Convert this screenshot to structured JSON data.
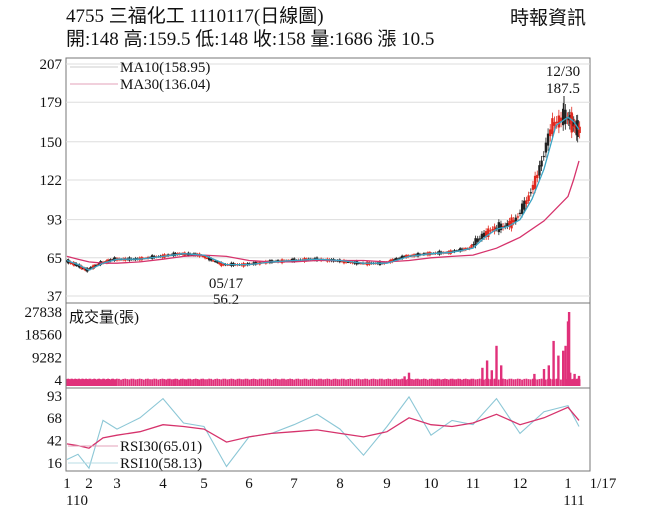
{
  "header": {
    "title": "4755  三福化工 1110117(日線圖)",
    "quote": "開:148 高:159.5 低:148 收:158 量:1686 漲 10.5",
    "source": "時報資訊"
  },
  "legend": {
    "ma10": "MA10(158.95)",
    "ma30": "MA30(136.04)",
    "volume": "成交量(張)",
    "rsi30": "RSI30(65.01)",
    "rsi10": "RSI10(58.13)"
  },
  "annotations": {
    "high_date": "12/30",
    "high_value": "187.5",
    "low_date": "05/17",
    "low_value": "56.2"
  },
  "colors": {
    "ma10": "#3aa3c4",
    "ma30": "#d6336c",
    "up_candle": "#e0281e",
    "down_candle": "#222222",
    "volume": "#e0307a",
    "rsi10": "#8cc7d6",
    "rsi30": "#d6336c",
    "grid": "#dddddd",
    "axis": "#777777"
  },
  "chart_data": [
    {
      "type": "line",
      "title": "4755 三福化工 1110117(日線圖)",
      "panel": "price",
      "ylabel": "",
      "yticks": [
        207,
        179,
        150,
        122,
        93,
        65,
        37
      ],
      "ylim": [
        37,
        207
      ],
      "x_month_labels": [
        "1",
        "2",
        "3",
        "4",
        "5",
        "6",
        "7",
        "8",
        "9",
        "10",
        "11",
        "12",
        "1",
        "1/17"
      ],
      "x_year_labels": [
        "110",
        "111"
      ],
      "ohlc_last": {
        "open": 148,
        "high": 159.5,
        "low": 148,
        "close": 158,
        "volume": 1686,
        "change": 10.5
      },
      "series": [
        {
          "name": "MA10",
          "last": 158.95,
          "x_month": [
            1,
            1.5,
            2,
            2.5,
            3,
            3.5,
            4,
            4.5,
            5,
            5.5,
            6,
            6.5,
            7,
            7.5,
            8,
            8.5,
            9,
            9.5,
            10,
            10.5,
            11,
            11.25,
            11.5,
            11.75,
            12,
            12.25,
            12.5,
            12.75,
            13,
            13.25,
            13.5
          ],
          "values": [
            63,
            60,
            56,
            61,
            64,
            64,
            66,
            68,
            67,
            60,
            60,
            62,
            63,
            64,
            63,
            61,
            61,
            66,
            68,
            69,
            72,
            80,
            86,
            88,
            93,
            108,
            130,
            162,
            168,
            165,
            159
          ]
        },
        {
          "name": "MA30",
          "last": 136.04,
          "x_month": [
            1,
            1.5,
            2,
            2.5,
            3,
            3.5,
            4,
            4.5,
            5,
            5.5,
            6,
            6.5,
            7,
            7.5,
            8,
            8.5,
            9,
            9.5,
            10,
            10.5,
            11,
            11.5,
            12,
            12.5,
            13,
            13.25,
            13.5
          ],
          "values": [
            66,
            64,
            62,
            61,
            61,
            62,
            64,
            66,
            67,
            66,
            63,
            62,
            62,
            63,
            63,
            63,
            62,
            63,
            65,
            66,
            67,
            72,
            80,
            92,
            110,
            122,
            136
          ]
        }
      ],
      "annotations": [
        {
          "text": "12/30 187.5",
          "type": "high",
          "value": 187.5,
          "date": "12/30"
        },
        {
          "text": "05/17 56.2",
          "type": "low",
          "value": 56.2,
          "date": "05/17"
        }
      ]
    },
    {
      "type": "bar",
      "panel": "volume",
      "title": "成交量(張)",
      "yticks": [
        27838,
        18560,
        9282,
        4
      ],
      "ylim": [
        4,
        27838
      ],
      "x_month": [
        9.4,
        9.5,
        11.2,
        11.3,
        11.4,
        11.5,
        11.6,
        12.3,
        12.5,
        12.6,
        12.7,
        12.8,
        12.9,
        12.95,
        13.0,
        13.05,
        13.1,
        13.3,
        13.5
      ],
      "values": [
        1500,
        3000,
        5000,
        8000,
        4000,
        14000,
        6000,
        2500,
        4500,
        6000,
        16000,
        10000,
        12000,
        14000,
        24000,
        27838,
        3000,
        2500,
        1686
      ]
    },
    {
      "type": "line",
      "panel": "rsi",
      "yticks": [
        93,
        68,
        42,
        16
      ],
      "ylim": [
        6,
        100
      ],
      "series": [
        {
          "name": "RSI30",
          "last": 65.01,
          "x_month": [
            1,
            1.5,
            2,
            2.5,
            3,
            3.5,
            4,
            4.5,
            5,
            5.5,
            6,
            6.5,
            7,
            7.5,
            8,
            8.5,
            9,
            9.5,
            10,
            10.5,
            11,
            11.5,
            12,
            12.5,
            13,
            13.5
          ],
          "values": [
            38,
            36,
            33,
            45,
            48,
            52,
            60,
            58,
            55,
            40,
            46,
            50,
            52,
            54,
            50,
            46,
            52,
            68,
            60,
            58,
            62,
            72,
            60,
            68,
            80,
            65
          ]
        },
        {
          "name": "RSI10",
          "last": 58.13,
          "x_month": [
            1,
            1.5,
            2,
            2.5,
            3,
            3.5,
            4,
            4.5,
            5,
            5.5,
            6,
            6.5,
            7,
            7.5,
            8,
            8.5,
            9,
            9.5,
            10,
            10.5,
            11,
            11.5,
            12,
            12.5,
            13,
            13.5
          ],
          "values": [
            20,
            26,
            10,
            65,
            55,
            68,
            90,
            62,
            58,
            12,
            46,
            50,
            60,
            72,
            55,
            25,
            58,
            92,
            48,
            65,
            60,
            90,
            50,
            75,
            82,
            58
          ]
        }
      ]
    }
  ]
}
